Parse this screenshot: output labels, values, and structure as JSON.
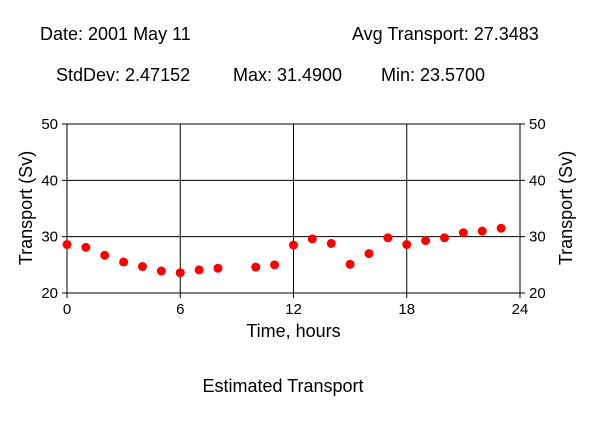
{
  "header": {
    "date": "Date: 2001 May 11",
    "avg": "Avg Transport: 27.3483",
    "stddev": "StdDev: 2.47152",
    "max": "Max: 31.4900",
    "min": "Min: 23.5700"
  },
  "chart_data": {
    "type": "scatter",
    "title": "Estimated Transport",
    "xlabel": "Time, hours",
    "ylabel": "Transport (Sv)",
    "y2label": "Transport (Sv)",
    "xlim": [
      0,
      24
    ],
    "ylim": [
      20,
      50
    ],
    "xticks": [
      0,
      6,
      12,
      18,
      24
    ],
    "yticks": [
      20,
      30,
      40,
      50
    ],
    "grid": true,
    "marker_color": "#ff0000",
    "x": [
      0,
      1,
      2,
      3,
      4,
      5,
      6,
      7,
      8,
      10,
      11,
      12,
      13,
      14,
      15,
      16,
      17,
      18,
      19,
      20,
      21,
      22,
      23
    ],
    "y": [
      28.6,
      28.1,
      26.7,
      25.5,
      24.7,
      23.9,
      23.6,
      24.1,
      24.4,
      24.6,
      25.0,
      28.5,
      29.6,
      28.8,
      25.1,
      27.0,
      29.8,
      28.6,
      29.3,
      29.8,
      30.7,
      31.0,
      31.5
    ]
  }
}
